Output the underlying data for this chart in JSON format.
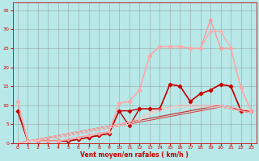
{
  "bg_color": "#b8e8e8",
  "grid_color": "#888888",
  "xlabel": "Vent moyen/en rafales ( km/h )",
  "xlabel_color": "#cc0000",
  "tick_color": "#cc0000",
  "ylim": [
    0,
    37
  ],
  "xlim": [
    -0.5,
    23.5
  ],
  "yticks": [
    0,
    5,
    10,
    15,
    20,
    25,
    30,
    35
  ],
  "series": [
    {
      "name": "dark_red_line1",
      "color": "#bb0000",
      "lw": 1.0,
      "marker": "D",
      "ms": 2.5,
      "data_x": [
        0,
        1,
        2,
        3,
        4,
        5,
        6,
        7,
        8,
        9,
        10,
        11,
        12,
        13,
        14,
        15,
        16,
        17,
        18,
        19,
        20,
        21,
        22,
        23
      ],
      "data_y": [
        8.5,
        0.5,
        0.5,
        0.5,
        0.5,
        0.5,
        1,
        1.5,
        2,
        2.5,
        8.5,
        4.5,
        9,
        9,
        9,
        15.5,
        15,
        11,
        13,
        14,
        15.5,
        15,
        8.5,
        8.5
      ]
    },
    {
      "name": "dark_red_line2",
      "color": "#cc0000",
      "lw": 1.0,
      "marker": "D",
      "ms": 2.5,
      "data_x": [
        0,
        1,
        2,
        3,
        4,
        5,
        6,
        7,
        8,
        9,
        10,
        11,
        12,
        13,
        14,
        15,
        16,
        17,
        18,
        19,
        20,
        21,
        22,
        23
      ],
      "data_y": [
        8.5,
        0.5,
        0.5,
        0.5,
        0.5,
        0.5,
        1,
        1.5,
        2,
        2.5,
        8.5,
        8.5,
        9,
        9,
        9,
        15.5,
        15,
        11,
        13,
        14,
        15.5,
        15,
        8.5,
        8.5
      ]
    },
    {
      "name": "dark_red_diagonal",
      "color": "#cc2222",
      "lw": 0.8,
      "marker": null,
      "ms": 0,
      "data_x": [
        0,
        1,
        2,
        3,
        4,
        5,
        6,
        7,
        8,
        9,
        10,
        11,
        12,
        13,
        14,
        15,
        16,
        17,
        18,
        19,
        20,
        21,
        22,
        23
      ],
      "data_y": [
        0,
        0.5,
        1,
        1.5,
        2,
        2.5,
        3,
        3.5,
        4,
        4.5,
        5,
        5.5,
        6,
        6.5,
        7,
        7.5,
        8,
        8.5,
        9,
        9.5,
        10,
        9.5,
        8.5,
        8
      ]
    },
    {
      "name": "dark_red_diagonal2",
      "color": "#dd3333",
      "lw": 0.7,
      "marker": null,
      "ms": 0,
      "data_x": [
        0,
        1,
        2,
        3,
        4,
        5,
        6,
        7,
        8,
        9,
        10,
        11,
        12,
        13,
        14,
        15,
        16,
        17,
        18,
        19,
        20,
        21,
        22,
        23
      ],
      "data_y": [
        0,
        0.3,
        0.7,
        1.2,
        1.5,
        2,
        2.5,
        3,
        3.5,
        4,
        4.5,
        5,
        5.5,
        6,
        6.5,
        7,
        7.5,
        8,
        8.5,
        9,
        9.5,
        9,
        8.5,
        8
      ]
    },
    {
      "name": "light_pink_1",
      "color": "#ff9999",
      "lw": 1.0,
      "marker": "D",
      "ms": 2.5,
      "data_x": [
        0,
        1,
        2,
        3,
        4,
        5,
        6,
        7,
        8,
        9,
        10,
        11,
        12,
        13,
        14,
        15,
        16,
        17,
        18,
        19,
        20,
        21,
        22,
        23
      ],
      "data_y": [
        11,
        0.5,
        0.5,
        0.5,
        0.5,
        1,
        1.5,
        2,
        2.5,
        3,
        10.5,
        11,
        14,
        23,
        25.5,
        25.5,
        25.5,
        25,
        25,
        32.5,
        25,
        25,
        14.5,
        8.5
      ]
    },
    {
      "name": "light_pink_2",
      "color": "#ffaaaa",
      "lw": 1.0,
      "marker": "D",
      "ms": 2,
      "data_x": [
        0,
        1,
        2,
        3,
        4,
        5,
        6,
        7,
        8,
        9,
        10,
        11,
        12,
        13,
        14,
        15,
        16,
        17,
        18,
        19,
        20,
        21,
        22,
        23
      ],
      "data_y": [
        11,
        0.5,
        0.5,
        0.5,
        0.5,
        1,
        1.5,
        2,
        2.5,
        3,
        10.5,
        11,
        14,
        23,
        25.5,
        25.5,
        25.5,
        25,
        25,
        29.5,
        29.5,
        25,
        14.5,
        8.5
      ]
    },
    {
      "name": "light_pink_diag1",
      "color": "#ffbbbb",
      "lw": 0.8,
      "marker": null,
      "ms": 0,
      "data_x": [
        0,
        1,
        2,
        3,
        4,
        5,
        6,
        7,
        8,
        9,
        10,
        11,
        12,
        13,
        14,
        15,
        16,
        17,
        18,
        19,
        20,
        21,
        22,
        23
      ],
      "data_y": [
        0,
        0.5,
        1,
        1.5,
        2,
        2.5,
        3,
        3.5,
        4,
        4.5,
        5,
        5.5,
        6.5,
        8,
        9,
        9.5,
        10,
        10,
        10,
        10,
        10,
        9.5,
        9,
        8.5
      ]
    },
    {
      "name": "light_pink_diag2",
      "color": "#ffcccc",
      "lw": 0.7,
      "marker": null,
      "ms": 0,
      "data_x": [
        0,
        1,
        2,
        3,
        4,
        5,
        6,
        7,
        8,
        9,
        10,
        11,
        12,
        13,
        14,
        15,
        16,
        17,
        18,
        19,
        20,
        21,
        22,
        23
      ],
      "data_y": [
        0,
        0.3,
        0.7,
        1.2,
        1.5,
        2,
        2.5,
        3,
        3.5,
        4,
        4.5,
        5,
        6,
        7.5,
        8.5,
        9,
        9.5,
        9.5,
        9.5,
        9.5,
        9.5,
        9,
        8.5,
        8
      ]
    }
  ]
}
